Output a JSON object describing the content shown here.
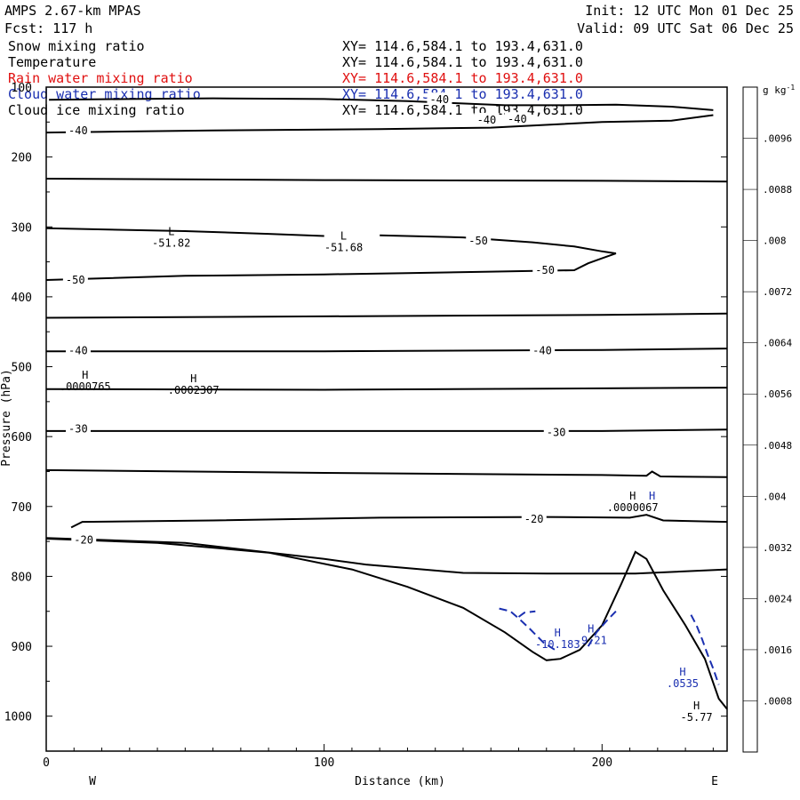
{
  "header": {
    "model": "AMPS 2.67-km MPAS",
    "forecast": "Fcst:  117 h",
    "init": "Init: 12 UTC Mon 01 Dec 25",
    "valid": "Valid: 09 UTC Sat 06 Dec 25"
  },
  "fields": [
    {
      "name": "Snow mixing ratio",
      "xy": "XY= 114.6,584.1 to 193.4,631.0",
      "color": "#000000"
    },
    {
      "name": "Temperature",
      "xy": "XY= 114.6,584.1 to 193.4,631.0",
      "color": "#000000"
    },
    {
      "name": "Rain water mixing ratio",
      "xy": "XY= 114.6,584.1 to 193.4,631.0",
      "color": "#e01010"
    },
    {
      "name": "Cloud water mixing ratio",
      "xy": "XY= 114.6,584.1 to 193.4,631.0",
      "color": "#1a2fb0"
    },
    {
      "name": "Cloud ice mixing ratio",
      "xy": "XY= 114.6,584.1 to 193.4,631.0",
      "color": "#000000"
    }
  ],
  "chart_data": {
    "type": "cross-section",
    "xlabel": "Distance (km)",
    "ylabel": "Pressure (hPa)",
    "xlim": [
      0,
      245
    ],
    "ylim": [
      1050,
      100
    ],
    "x_ticks": [
      0,
      100,
      200
    ],
    "y_ticks": [
      100,
      200,
      300,
      400,
      500,
      600,
      700,
      800,
      900,
      1000
    ],
    "west_label": "W",
    "east_label": "E",
    "colorbar": {
      "unit": "g kg",
      "unit_exp": "-1",
      "ticks": [
        ".0096",
        ".0088",
        ".008",
        ".0072",
        ".0064",
        ".0056",
        ".0048",
        ".004",
        ".0032",
        ".0024",
        ".0016",
        ".0008"
      ],
      "shades": [
        "#3c3c3c",
        "#4a4a4a",
        "#5a5a5a",
        "#6a6a6a",
        "#7a7a7a",
        "#8a8a8a",
        "#9a9a9a",
        "#aaaaaa",
        "#bababa",
        "#cacaca",
        "#dadada",
        "#e8e8e8",
        "#ffffff"
      ]
    },
    "temperature_contours": [
      {
        "points": [
          [
            1,
            118
          ],
          [
            30,
            117
          ],
          [
            60,
            116
          ],
          [
            100,
            117
          ],
          [
            130,
            120
          ],
          [
            165,
            126
          ],
          [
            185,
            126
          ],
          [
            205,
            125
          ],
          [
            225,
            128
          ],
          [
            240,
            133
          ]
        ]
      },
      {
        "points": [
          [
            0,
            165
          ],
          [
            60,
            162
          ],
          [
            120,
            160
          ],
          [
            160,
            158
          ],
          [
            200,
            150
          ],
          [
            225,
            148
          ],
          [
            240,
            140
          ]
        ]
      },
      {
        "points": [
          [
            0,
            231
          ],
          [
            100,
            233
          ],
          [
            200,
            234
          ],
          [
            245,
            235
          ]
        ]
      },
      {
        "points": [
          [
            0,
            302
          ],
          [
            50,
            306
          ],
          [
            80,
            310
          ],
          [
            100,
            313
          ]
        ]
      },
      {
        "points": [
          [
            120,
            312
          ],
          [
            150,
            315
          ],
          [
            175,
            322
          ],
          [
            190,
            328
          ],
          [
            200,
            335
          ],
          [
            205,
            338
          ],
          [
            200,
            345
          ],
          [
            195,
            352
          ],
          [
            190,
            362
          ],
          [
            160,
            364
          ],
          [
            130,
            366
          ],
          [
            100,
            368
          ],
          [
            50,
            370
          ],
          [
            0,
            376
          ]
        ]
      },
      {
        "points": [
          [
            0,
            430
          ],
          [
            100,
            428
          ],
          [
            200,
            426
          ],
          [
            245,
            424
          ]
        ]
      },
      {
        "points": [
          [
            0,
            478
          ],
          [
            100,
            478
          ],
          [
            200,
            476
          ],
          [
            245,
            474
          ]
        ]
      },
      {
        "points": [
          [
            0,
            532
          ],
          [
            100,
            533
          ],
          [
            200,
            531
          ],
          [
            245,
            530
          ]
        ]
      },
      {
        "points": [
          [
            0,
            592
          ],
          [
            100,
            592
          ],
          [
            200,
            592
          ],
          [
            245,
            590
          ]
        ]
      },
      {
        "points": [
          [
            0,
            648
          ],
          [
            100,
            652
          ],
          [
            200,
            655
          ],
          [
            216,
            656
          ],
          [
            218,
            650
          ],
          [
            221,
            657
          ],
          [
            245,
            658
          ]
        ]
      },
      {
        "points": [
          [
            9,
            730
          ],
          [
            13,
            722
          ],
          [
            60,
            720
          ],
          [
            120,
            716
          ],
          [
            180,
            715
          ],
          [
            210,
            716
          ],
          [
            216,
            712
          ],
          [
            222,
            720
          ],
          [
            245,
            722
          ]
        ]
      },
      {
        "points": [
          [
            0,
            745
          ],
          [
            50,
            752
          ],
          [
            100,
            775
          ],
          [
            115,
            783
          ],
          [
            150,
            795
          ],
          [
            180,
            796
          ],
          [
            212,
            796
          ],
          [
            245,
            790
          ]
        ]
      }
    ],
    "terrain": [
      [
        0,
        746
      ],
      [
        40,
        752
      ],
      [
        80,
        766
      ],
      [
        110,
        790
      ],
      [
        130,
        815
      ],
      [
        150,
        845
      ],
      [
        165,
        880
      ],
      [
        175,
        908
      ],
      [
        180,
        920
      ],
      [
        185,
        918
      ],
      [
        192,
        905
      ],
      [
        200,
        870
      ],
      [
        207,
        810
      ],
      [
        212,
        765
      ],
      [
        216,
        775
      ],
      [
        222,
        820
      ],
      [
        230,
        870
      ],
      [
        237,
        918
      ],
      [
        242,
        975
      ],
      [
        245,
        990
      ]
    ],
    "cloud_water_segments": [
      [
        [
          163,
          846
        ],
        [
          167,
          850
        ],
        [
          170,
          860
        ],
        [
          174,
          875
        ],
        [
          179,
          895
        ],
        [
          183,
          905
        ]
      ],
      [
        [
          195,
          900
        ],
        [
          198,
          880
        ],
        [
          202,
          862
        ],
        [
          205,
          850
        ]
      ],
      [
        [
          232,
          855
        ],
        [
          234,
          870
        ],
        [
          236,
          890
        ],
        [
          238,
          912
        ],
        [
          240,
          932
        ],
        [
          242,
          955
        ]
      ],
      [
        [
          170,
          858
        ],
        [
          172,
          852
        ],
        [
          176,
          850
        ]
      ]
    ],
    "contour_labels": [
      {
        "text": "-40",
        "x": 138,
        "y": 118
      },
      {
        "text": "-40",
        "x": 8,
        "y": 162
      },
      {
        "text": "-40",
        "x": 155,
        "y": 147
      },
      {
        "text": "-40",
        "x": 166,
        "y": 146
      },
      {
        "text": "-50",
        "x": 152,
        "y": 320
      },
      {
        "text": "-50",
        "x": 176,
        "y": 362
      },
      {
        "text": "-50",
        "x": 7,
        "y": 376
      },
      {
        "text": "-40",
        "x": 8,
        "y": 477
      },
      {
        "text": "-40",
        "x": 175,
        "y": 477
      },
      {
        "text": "-30",
        "x": 8,
        "y": 589
      },
      {
        "text": "-30",
        "x": 180,
        "y": 594
      },
      {
        "text": "-20",
        "x": 172,
        "y": 718
      },
      {
        "text": "-20",
        "x": 10,
        "y": 748
      }
    ],
    "extrema": [
      {
        "mark": "L",
        "value": "-51.82",
        "x": 45,
        "y": 312,
        "color": "#000000"
      },
      {
        "mark": "L",
        "value": "-51.68",
        "x": 107,
        "y": 318,
        "color": "#000000"
      },
      {
        "mark": "H",
        "value": ".0000765",
        "x": 14,
        "y": 517,
        "color": "#000000"
      },
      {
        "mark": "H",
        "value": ".0002307",
        "x": 53,
        "y": 522,
        "color": "#000000"
      },
      {
        "mark": "H",
        "value": ".0000067",
        "x": 211,
        "y": 690,
        "color": "#000000"
      },
      {
        "mark": "H",
        "value": "",
        "x": 218,
        "y": 690,
        "color": "#1a2fb0"
      },
      {
        "mark": "H",
        "value": "-10.183",
        "x": 184,
        "y": 886,
        "color": "#1a2fb0"
      },
      {
        "mark": "H",
        "value": "-9.21",
        "x": 196,
        "y": 880,
        "color": "#1a2fb0"
      },
      {
        "mark": "H",
        "value": ".0535",
        "x": 229,
        "y": 942,
        "color": "#1a2fb0"
      },
      {
        "mark": "H",
        "value": "-5.77",
        "x": 234,
        "y": 990,
        "color": "#000000"
      }
    ]
  }
}
